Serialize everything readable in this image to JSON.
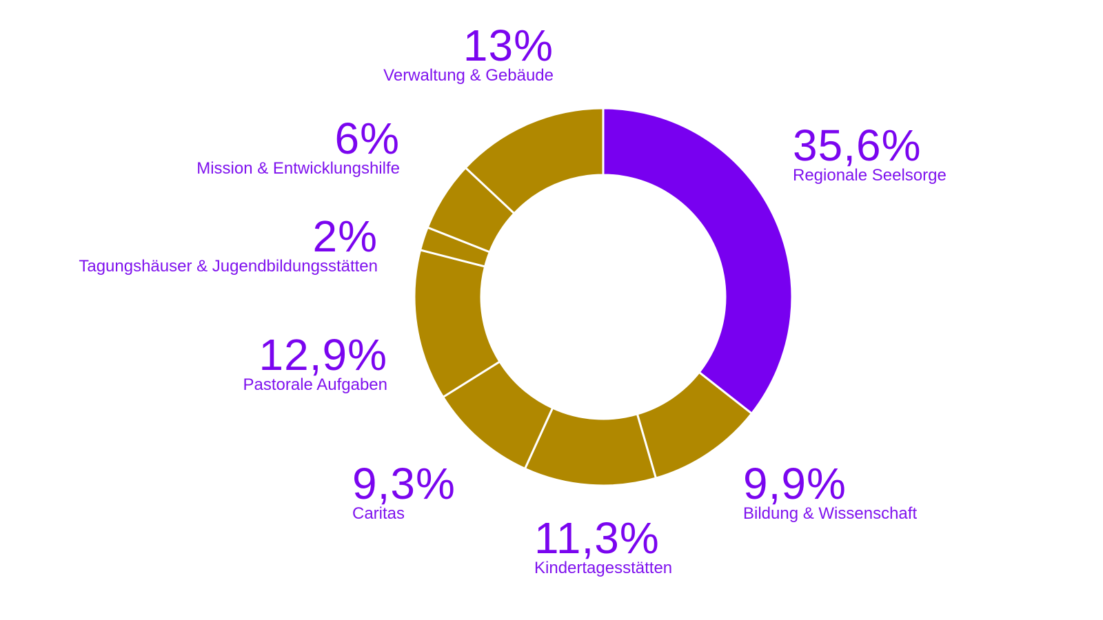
{
  "chart_data": {
    "type": "pie",
    "variant": "donut",
    "start": "top, clockwise",
    "slices": [
      {
        "label": "Regionale Seelsorge",
        "value": 35.6,
        "display": "35,6%",
        "color": "#7800f0"
      },
      {
        "label": "Bildung & Wissenschaft",
        "value": 9.9,
        "display": "9,9%",
        "color": "#b08800"
      },
      {
        "label": "Kindertagesstätten",
        "value": 11.3,
        "display": "11,3%",
        "color": "#b08800"
      },
      {
        "label": "Caritas",
        "value": 9.3,
        "display": "9,3%",
        "color": "#b08800"
      },
      {
        "label": "Pastorale Aufgaben",
        "value": 12.9,
        "display": "12,9%",
        "color": "#b08800"
      },
      {
        "label": "Tagungshäuser & Jugendbildungsstätten",
        "value": 2,
        "display": "2%",
        "color": "#b08800"
      },
      {
        "label": "Mission & Entwicklungshilfe",
        "value": 6,
        "display": "6%",
        "color": "#b08800"
      },
      {
        "label": "Verwaltung & Gebäude",
        "value": 13,
        "display": "13%",
        "color": "#b08800"
      }
    ],
    "label_color": "#7a05ef"
  }
}
